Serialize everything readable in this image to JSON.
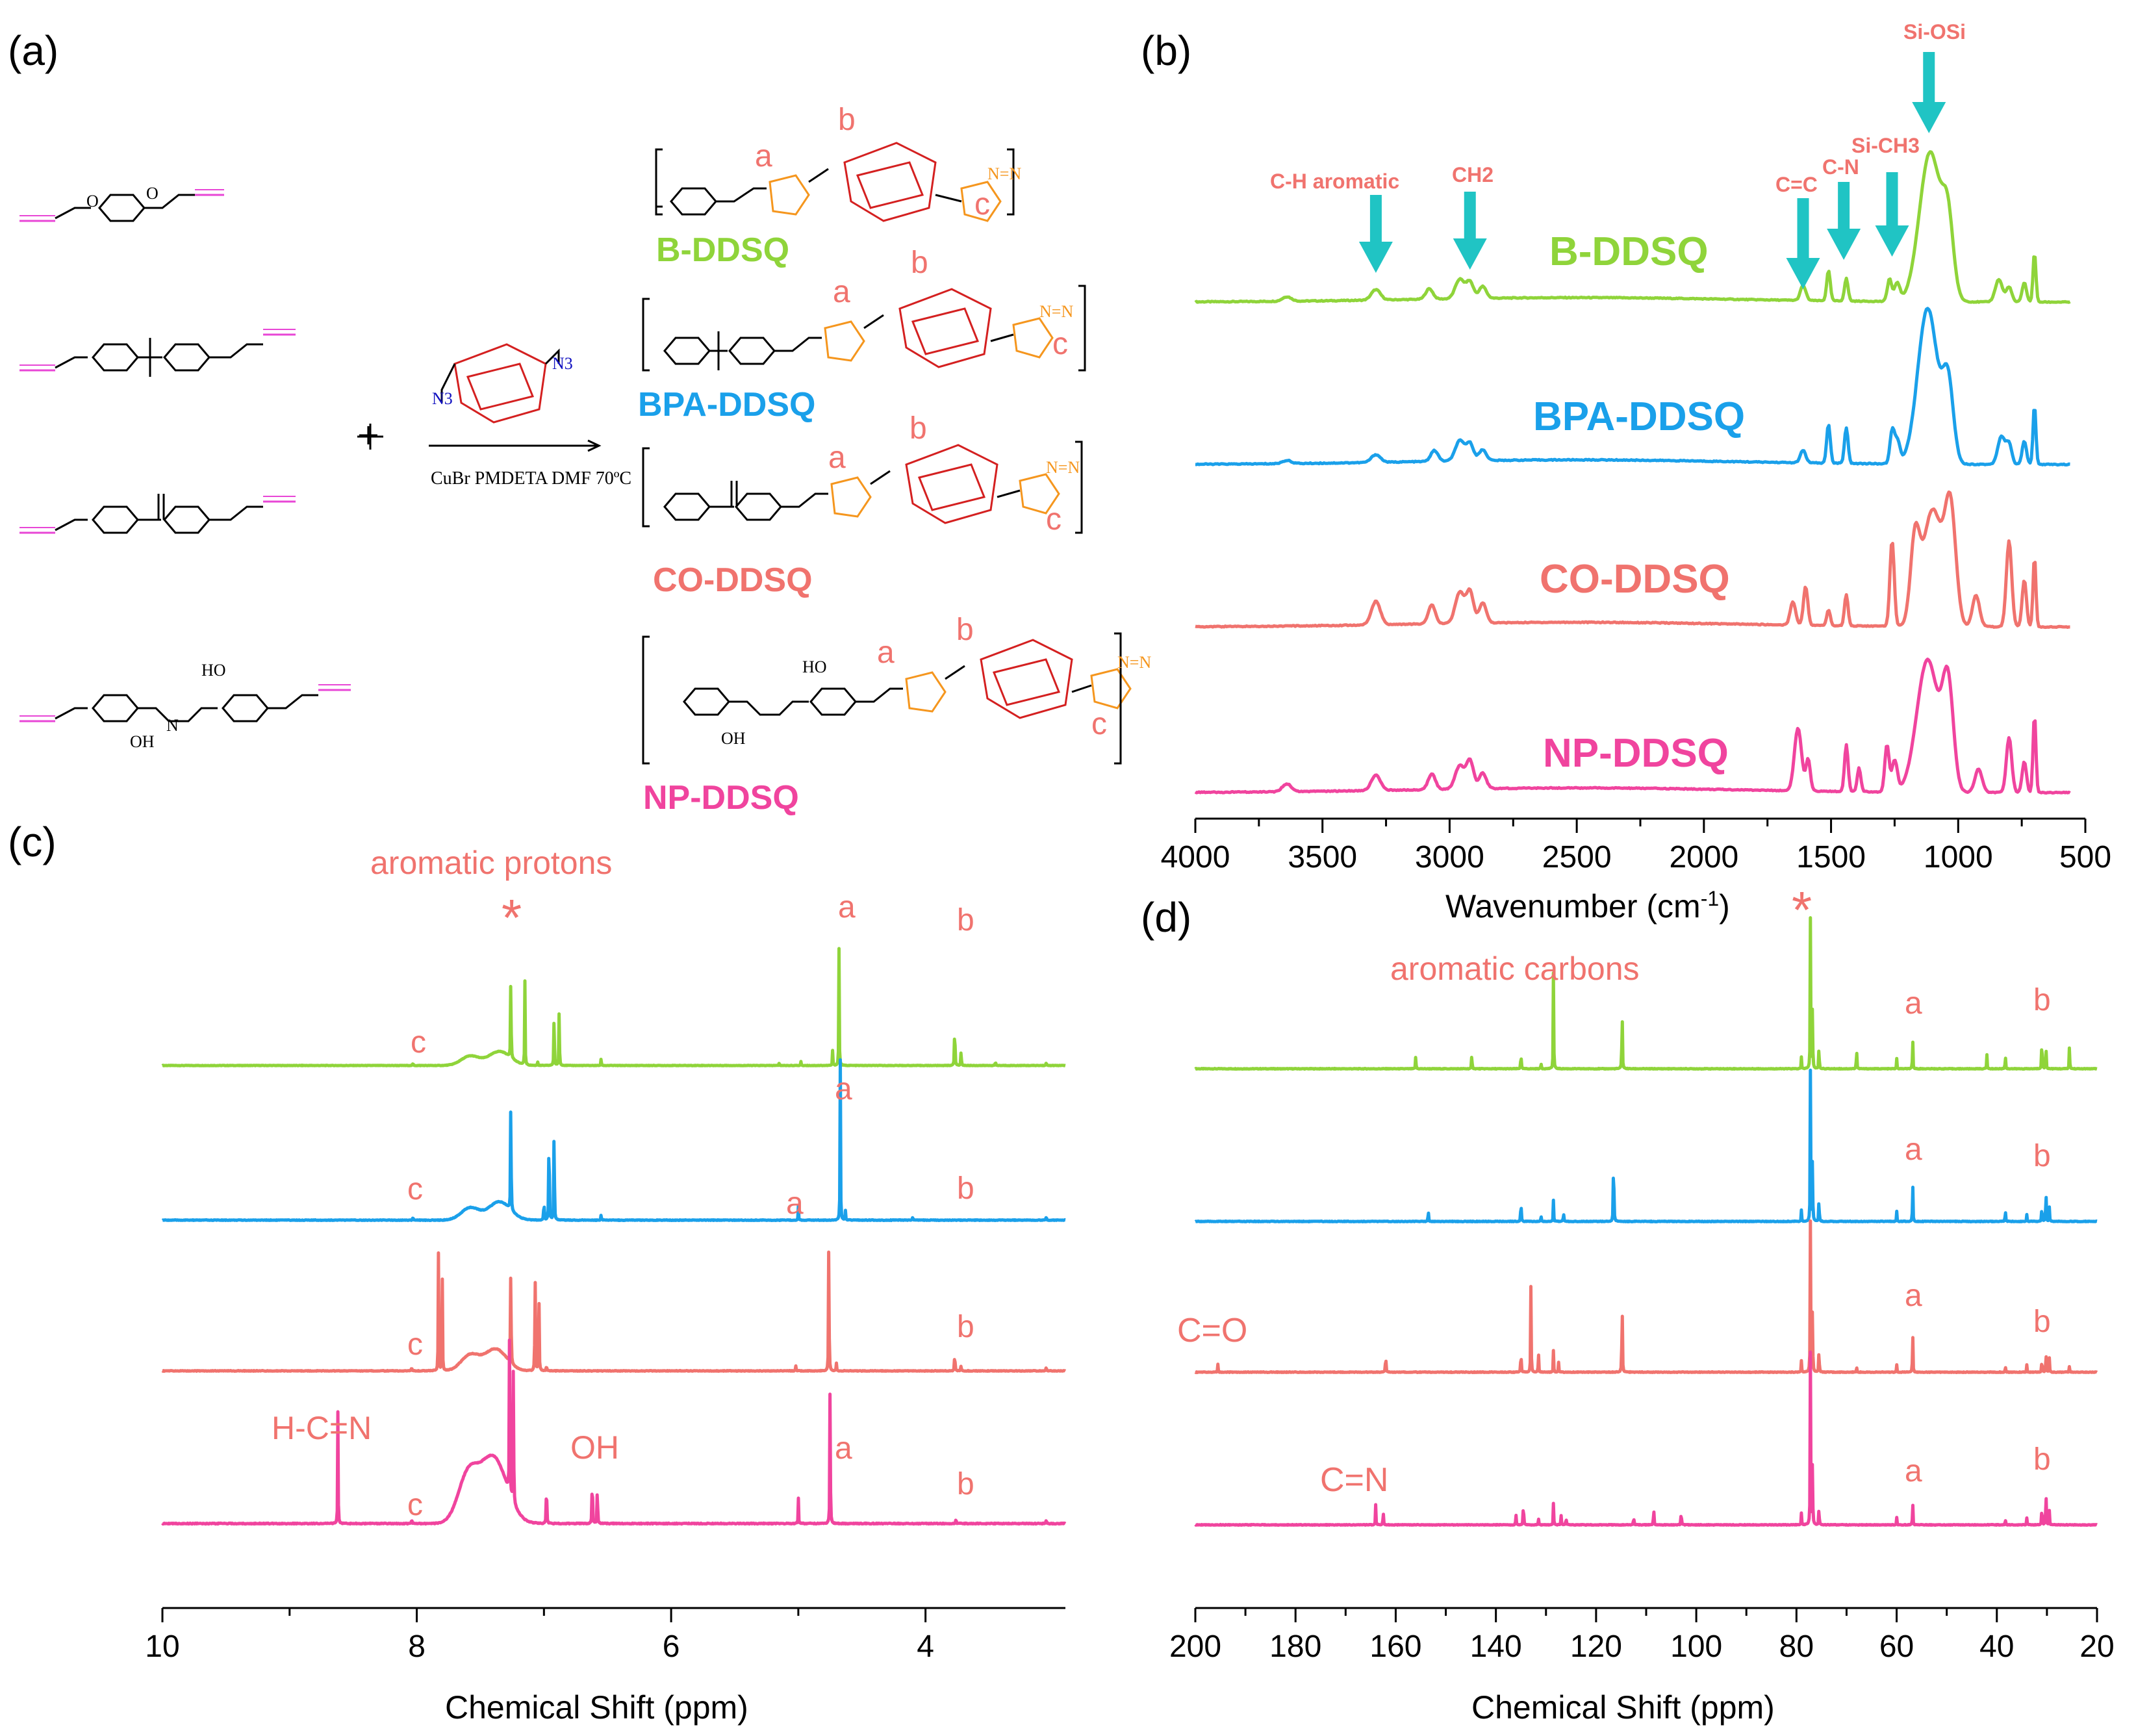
{
  "panels": {
    "a": "(a)",
    "b": "(b)",
    "c": "(c)",
    "d": "(d)"
  },
  "scheme": {
    "reaction_plus": "+",
    "conditions": "CuBr  PMDETA  DMF  70ºC",
    "azide_label_1": "N3",
    "azide_label_2": "N3",
    "atom_O": "O",
    "atom_HO": "HO",
    "atom_OH": "OH",
    "atom_N": "N",
    "triazole_N": "N=N",
    "site_labels": [
      "a",
      "b",
      "c"
    ],
    "products": [
      {
        "name": "B-DDSQ",
        "color": "#8fd43a"
      },
      {
        "name": "BPA-DDSQ",
        "color": "#1aa0ea"
      },
      {
        "name": "CO-DDSQ",
        "color": "#f0736e"
      },
      {
        "name": "NP-DDSQ",
        "color": "#f0449e"
      }
    ]
  },
  "chart_data": [
    {
      "id": "b",
      "type": "line",
      "title": "",
      "xlabel": "Wavenumber (cm-1)",
      "xlabel_main": "Wavenumber (cm",
      "xlabel_sup": "-1",
      "xlabel_close": ")",
      "ylabel": "",
      "xlim": [
        4000,
        500
      ],
      "xticks": [
        4000,
        3500,
        3000,
        2500,
        2000,
        1500,
        1000,
        500
      ],
      "series": [
        {
          "name": "B-DDSQ",
          "color": "#8fd43a",
          "baseline": 0.0,
          "peaks": [
            [
              3640,
              0.03,
              25
            ],
            [
              3290,
              0.07,
              25
            ],
            [
              3080,
              0.07,
              20
            ],
            [
              2960,
              0.13,
              25
            ],
            [
              2920,
              0.11,
              20
            ],
            [
              2870,
              0.08,
              20
            ],
            [
              1610,
              0.1,
              15
            ],
            [
              1510,
              0.2,
              10
            ],
            [
              1440,
              0.15,
              10
            ],
            [
              1270,
              0.15,
              12
            ],
            [
              1240,
              0.12,
              15
            ],
            [
              1110,
              1.0,
              60
            ],
            [
              1040,
              0.45,
              30
            ],
            [
              840,
              0.15,
              20
            ],
            [
              800,
              0.1,
              15
            ],
            [
              740,
              0.13,
              12
            ],
            [
              700,
              0.33,
              8
            ]
          ]
        },
        {
          "name": "BPA-DDSQ",
          "color": "#1aa0ea",
          "baseline": 0.0,
          "peaks": [
            [
              3640,
              0.02,
              25
            ],
            [
              3290,
              0.05,
              25
            ],
            [
              3060,
              0.07,
              20
            ],
            [
              2960,
              0.13,
              25
            ],
            [
              2920,
              0.11,
              20
            ],
            [
              2870,
              0.07,
              20
            ],
            [
              1610,
              0.08,
              15
            ],
            [
              1510,
              0.25,
              10
            ],
            [
              1440,
              0.23,
              10
            ],
            [
              1260,
              0.2,
              12
            ],
            [
              1240,
              0.15,
              15
            ],
            [
              1120,
              1.0,
              55
            ],
            [
              1040,
              0.5,
              30
            ],
            [
              830,
              0.18,
              20
            ],
            [
              800,
              0.13,
              15
            ],
            [
              740,
              0.15,
              12
            ],
            [
              700,
              0.38,
              8
            ]
          ]
        },
        {
          "name": "CO-DDSQ",
          "color": "#f0736e",
          "baseline": 0.0,
          "peaks": [
            [
              3290,
              0.15,
              25
            ],
            [
              3070,
              0.12,
              20
            ],
            [
              2960,
              0.2,
              25
            ],
            [
              2920,
              0.2,
              20
            ],
            [
              2870,
              0.13,
              20
            ],
            [
              1650,
              0.15,
              15
            ],
            [
              1600,
              0.25,
              12
            ],
            [
              1510,
              0.1,
              10
            ],
            [
              1440,
              0.2,
              10
            ],
            [
              1260,
              0.55,
              12
            ],
            [
              1170,
              0.5,
              25
            ],
            [
              1100,
              0.75,
              55
            ],
            [
              1030,
              0.7,
              30
            ],
            [
              930,
              0.2,
              20
            ],
            [
              800,
              0.55,
              15
            ],
            [
              740,
              0.3,
              12
            ],
            [
              700,
              0.45,
              8
            ]
          ]
        },
        {
          "name": "NP-DDSQ",
          "color": "#f0449e",
          "baseline": 0.0,
          "peaks": [
            [
              3640,
              0.05,
              25
            ],
            [
              3290,
              0.1,
              25
            ],
            [
              3070,
              0.1,
              20
            ],
            [
              2960,
              0.15,
              25
            ],
            [
              2920,
              0.18,
              20
            ],
            [
              2870,
              0.1,
              20
            ],
            [
              1630,
              0.4,
              20
            ],
            [
              1590,
              0.2,
              12
            ],
            [
              1440,
              0.3,
              10
            ],
            [
              1390,
              0.15,
              10
            ],
            [
              1280,
              0.3,
              12
            ],
            [
              1250,
              0.2,
              15
            ],
            [
              1120,
              0.85,
              60
            ],
            [
              1040,
              0.65,
              30
            ],
            [
              920,
              0.15,
              20
            ],
            [
              800,
              0.35,
              15
            ],
            [
              740,
              0.2,
              12
            ],
            [
              700,
              0.5,
              8
            ]
          ]
        }
      ],
      "series_labels": [
        "B-DDSQ",
        "BPA-DDSQ",
        "CO-DDSQ",
        "NP-DDSQ"
      ],
      "annotations": [
        "C-H aromatic",
        "CH2",
        "C=C",
        "C-N",
        "Si-CH3",
        "Si-OSi"
      ]
    },
    {
      "id": "c",
      "type": "line",
      "title": "",
      "xlabel": "Chemical Shift (ppm)",
      "ylabel": "",
      "xlim": [
        10,
        2.9
      ],
      "xticks": [
        10,
        8,
        6,
        4
      ],
      "series": [
        {
          "name": "B-DDSQ",
          "color": "#8fd43a",
          "baseline": 0.0,
          "peaks": [
            [
              8.03,
              0.03
            ],
            [
              7.26,
              0.95
            ],
            [
              7.15,
              0.72
            ],
            [
              7.05,
              0.05
            ],
            [
              6.92,
              0.63
            ],
            [
              6.88,
              0.58
            ],
            [
              6.55,
              0.08
            ],
            [
              5.15,
              0.03
            ],
            [
              4.98,
              0.04
            ],
            [
              4.73,
              0.15
            ],
            [
              4.68,
              1.0
            ],
            [
              3.77,
              0.55
            ],
            [
              3.72,
              0.18
            ],
            [
              3.45,
              0.05
            ],
            [
              3.05,
              0.04
            ]
          ],
          "hump": [
            [
              7.58,
              0.1,
              0.08
            ],
            [
              7.35,
              0.12,
              0.12
            ]
          ]
        },
        {
          "name": "BPA-DDSQ",
          "color": "#1aa0ea",
          "baseline": 0.0,
          "peaks": [
            [
              8.03,
              0.03
            ],
            [
              7.26,
              1.0
            ],
            [
              7.0,
              0.2
            ],
            [
              6.96,
              0.95
            ],
            [
              6.92,
              0.9
            ],
            [
              6.55,
              0.05
            ],
            [
              5.0,
              0.1
            ],
            [
              4.67,
              1.05
            ],
            [
              4.63,
              0.07
            ],
            [
              4.1,
              0.03
            ],
            [
              3.05,
              0.04
            ]
          ],
          "hump": [
            [
              7.58,
              0.1,
              0.08
            ],
            [
              7.35,
              0.12,
              0.12
            ]
          ]
        },
        {
          "name": "CO-DDSQ",
          "color": "#f0736e",
          "baseline": 0.0,
          "peaks": [
            [
              8.04,
              0.04
            ],
            [
              7.83,
              0.82
            ],
            [
              7.8,
              0.75
            ],
            [
              7.26,
              0.85
            ],
            [
              7.07,
              0.82
            ],
            [
              7.04,
              0.78
            ],
            [
              6.98,
              0.05
            ],
            [
              5.02,
              0.03
            ],
            [
              4.76,
              1.07
            ],
            [
              4.7,
              0.05
            ],
            [
              3.77,
              0.18
            ],
            [
              3.72,
              0.05
            ],
            [
              3.05,
              0.04
            ]
          ],
          "hump": [
            [
              7.58,
              0.1,
              0.1
            ],
            [
              7.38,
              0.12,
              0.14
            ]
          ]
        },
        {
          "name": "NP-DDSQ",
          "color": "#f0449e",
          "baseline": 0.0,
          "peaks": [
            [
              8.62,
              0.55
            ],
            [
              8.04,
              0.03
            ],
            [
              7.27,
              1.15
            ],
            [
              7.24,
              0.8
            ],
            [
              6.98,
              0.3
            ],
            [
              6.62,
              0.35
            ],
            [
              6.58,
              0.25
            ],
            [
              5.0,
              0.12
            ],
            [
              4.75,
              0.77
            ],
            [
              3.76,
              0.03
            ],
            [
              3.05,
              0.03
            ]
          ],
          "hump": [
            [
              7.6,
              0.11,
              0.2
            ],
            [
              7.4,
              0.15,
              0.3
            ]
          ]
        }
      ],
      "annotations": [
        "aromatic protons",
        "*",
        "a",
        "b",
        "c",
        "H-C=N",
        "OH"
      ]
    },
    {
      "id": "d",
      "type": "line",
      "title": "",
      "xlabel": "Chemical Shift (ppm)",
      "ylabel": "",
      "xlim": [
        200,
        20
      ],
      "xticks": [
        200,
        180,
        160,
        140,
        120,
        100,
        80,
        60,
        40,
        20
      ],
      "series": [
        {
          "name": "B-DDSQ",
          "color": "#8fd43a",
          "baseline": 0.0,
          "peaks": [
            [
              156,
              0.1
            ],
            [
              144.8,
              0.13
            ],
            [
              135,
              0.15
            ],
            [
              131,
              0.05
            ],
            [
              128.5,
              0.67
            ],
            [
              114.8,
              0.55
            ],
            [
              79,
              0.08
            ],
            [
              77.2,
              1.05
            ],
            [
              76.8,
              0.5
            ],
            [
              75.5,
              0.2
            ],
            [
              68,
              0.18
            ],
            [
              60,
              0.07
            ],
            [
              56.8,
              0.23
            ],
            [
              42,
              0.1
            ],
            [
              38.3,
              0.12
            ],
            [
              31,
              0.3
            ],
            [
              30.2,
              0.2
            ],
            [
              25.5,
              0.18
            ]
          ]
        },
        {
          "name": "BPA-DDSQ",
          "color": "#1aa0ea",
          "baseline": 0.0,
          "peaks": [
            [
              153.5,
              0.1
            ],
            [
              135,
              0.2
            ],
            [
              131,
              0.05
            ],
            [
              128.5,
              0.15
            ],
            [
              126.5,
              0.08
            ],
            [
              116.5,
              0.68
            ],
            [
              79,
              0.08
            ],
            [
              77.2,
              1.05
            ],
            [
              76.8,
              0.5
            ],
            [
              75.5,
              0.2
            ],
            [
              60,
              0.07
            ],
            [
              56.8,
              0.3
            ],
            [
              38.3,
              0.1
            ],
            [
              34,
              0.05
            ],
            [
              31,
              0.15
            ],
            [
              30.2,
              0.28
            ],
            [
              29.5,
              0.1
            ]
          ]
        },
        {
          "name": "CO-DDSQ",
          "color": "#f0736e",
          "baseline": 0.0,
          "peaks": [
            [
              195.5,
              0.05
            ],
            [
              162,
              0.17
            ],
            [
              135,
              0.2
            ],
            [
              133,
              0.6
            ],
            [
              131.5,
              0.15
            ],
            [
              128.5,
              0.15
            ],
            [
              127.5,
              0.07
            ],
            [
              114.8,
              0.65
            ],
            [
              79,
              0.08
            ],
            [
              77.2,
              1.05
            ],
            [
              76.8,
              0.5
            ],
            [
              75.5,
              0.2
            ],
            [
              68,
              0.05
            ],
            [
              60,
              0.05
            ],
            [
              56.8,
              0.3
            ],
            [
              38.3,
              0.05
            ],
            [
              34,
              0.05
            ],
            [
              31,
              0.12
            ],
            [
              30.2,
              0.18
            ],
            [
              29.5,
              0.1
            ],
            [
              25.5,
              0.05
            ]
          ]
        },
        {
          "name": "NP-DDSQ",
          "color": "#f0449e",
          "baseline": 0.0,
          "peaks": [
            [
              164,
              0.13
            ],
            [
              162.5,
              0.12
            ],
            [
              136,
              0.08
            ],
            [
              134.5,
              0.22
            ],
            [
              131.5,
              0.05
            ],
            [
              128.5,
              0.15
            ],
            [
              127,
              0.08
            ],
            [
              126,
              0.07
            ],
            [
              112.5,
              0.08
            ],
            [
              108.5,
              0.15
            ],
            [
              103,
              0.13
            ],
            [
              79,
              0.08
            ],
            [
              77.2,
              1.2
            ],
            [
              76.8,
              0.5
            ],
            [
              75.5,
              0.15
            ],
            [
              60,
              0.05
            ],
            [
              56.8,
              0.17
            ],
            [
              38.3,
              0.05
            ],
            [
              34,
              0.05
            ],
            [
              31,
              0.18
            ],
            [
              30.2,
              0.3
            ],
            [
              29.5,
              0.1
            ]
          ]
        }
      ],
      "annotations": [
        "aromatic carbons",
        "*",
        "a",
        "b",
        "C=O",
        "C=N"
      ]
    }
  ]
}
